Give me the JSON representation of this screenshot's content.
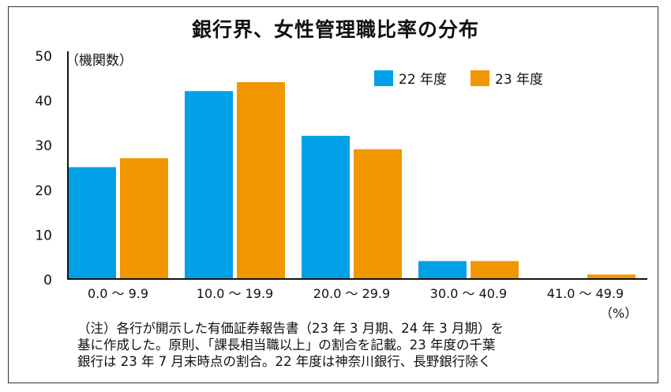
{
  "chart_data": {
    "type": "bar",
    "title": "銀行界、女性管理職比率の分布",
    "ylabel": "（機関数）",
    "xlabel": "（%）",
    "ylim": [
      0,
      50
    ],
    "yticks": [
      "0",
      "10",
      "20",
      "30",
      "40",
      "50"
    ],
    "categories": [
      "0.0 〜 9.9",
      "10.0 〜 19.9",
      "20.0 〜 29.9",
      "30.0 〜 40.9",
      "41.0 〜 49.9"
    ],
    "series": [
      {
        "name": "22 年度",
        "color": "#00a0e6",
        "values": [
          25,
          42,
          32,
          4,
          0
        ]
      },
      {
        "name": "23 年度",
        "color": "#f29600",
        "values": [
          27,
          44,
          29,
          4,
          1
        ]
      }
    ],
    "legend_position": "top-right",
    "grid": false,
    "note": "（注）各行が開示した有価証券報告書（23 年 3 月期、24 年 3 月期）を\n基に作成した。原則、「課長相当職以上」の割合を記載。23 年度の千葉\n銀行は 23 年 7 月末時点の割合。22 年度は神奈川銀行、長野銀行除く"
  }
}
